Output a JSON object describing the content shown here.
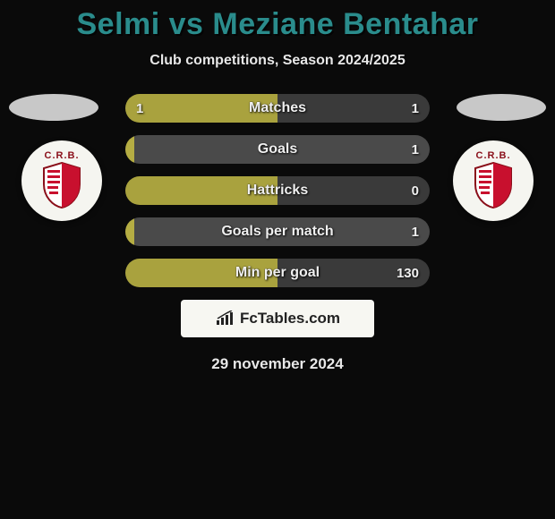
{
  "title": "Selmi vs Meziane Bentahar",
  "subtitle": "Club competitions, Season 2024/2025",
  "date": "29 november 2024",
  "colors": {
    "title": "#2a8c8c",
    "bar_left": "#a9a23e",
    "bar_left_alt": "#b5ad43",
    "bar_right": "#3a3a3a",
    "bar_right_alt": "#4a4a4a",
    "bg": "#0a0a0a"
  },
  "badges": {
    "left": {
      "abbr": "C.R.B."
    },
    "right": {
      "abbr": "C.R.B."
    }
  },
  "stats": [
    {
      "label": "Matches",
      "left_val": "1",
      "right_val": "1",
      "left_pct": 50,
      "right_pct": 50
    },
    {
      "label": "Goals",
      "left_val": "",
      "right_val": "1",
      "left_pct": 3,
      "right_pct": 97
    },
    {
      "label": "Hattricks",
      "left_val": "",
      "right_val": "0",
      "left_pct": 50,
      "right_pct": 50
    },
    {
      "label": "Goals per match",
      "left_val": "",
      "right_val": "1",
      "left_pct": 3,
      "right_pct": 97
    },
    {
      "label": "Min per goal",
      "left_val": "",
      "right_val": "130",
      "left_pct": 50,
      "right_pct": 50
    }
  ],
  "logo": {
    "text": "FcTables.com"
  }
}
